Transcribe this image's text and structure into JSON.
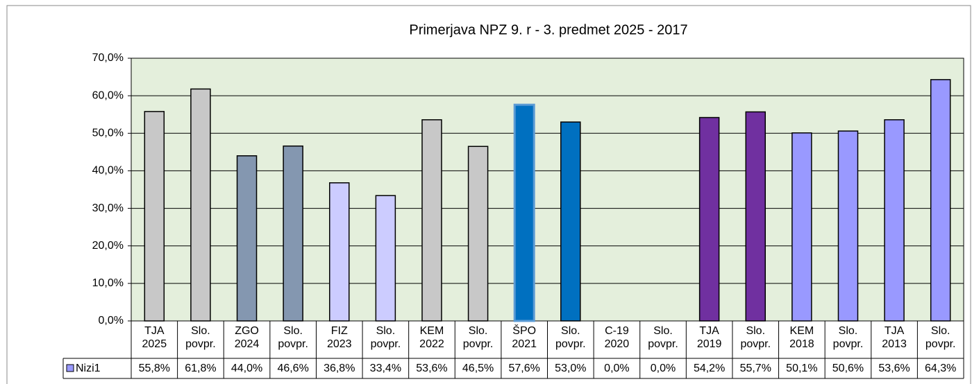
{
  "chart_data": {
    "type": "bar",
    "title": "Primerjava NPZ 9. r - 3. predmet  2025 - 2017",
    "categories": [
      "TJA 2025",
      "Slo. povpr.",
      "ZGO 2024",
      "Slo. povpr.",
      "FIZ 2023",
      "Slo. povpr.",
      "KEM 2022",
      "Slo. povpr.",
      "ŠPO 2021",
      "Slo. povpr.",
      "C-19 2020",
      "Slo. povpr.",
      "TJA 2019",
      "Slo. povpr.",
      "KEM 2018",
      "Slo. povpr.",
      "TJA 2013",
      "Slo. povpr."
    ],
    "series": [
      {
        "name": "Nizi1",
        "color": "#9999ff",
        "values": [
          55.8,
          61.8,
          44.0,
          46.6,
          36.8,
          33.4,
          53.6,
          46.5,
          57.6,
          53.0,
          0.0,
          0.0,
          54.2,
          55.7,
          50.1,
          50.6,
          53.6,
          64.3
        ],
        "value_labels": [
          "55,8%",
          "61,8%",
          "44,0%",
          "46,6%",
          "36,8%",
          "33,4%",
          "53,6%",
          "46,5%",
          "57,6%",
          "53,0%",
          "0,0%",
          "0,0%",
          "54,2%",
          "55,7%",
          "50,1%",
          "50,6%",
          "53,6%",
          "64,3%"
        ],
        "colors": [
          "#c8c8c8",
          "#c8c8c8",
          "#8497b0",
          "#8497b0",
          "#ccccff",
          "#ccccff",
          "#c8c8c8",
          "#c8c8c8",
          "#0070c0",
          "#0070c0",
          "#c8c8c8",
          "#c8c8c8",
          "#7030a0",
          "#7030a0",
          "#9999ff",
          "#9999ff",
          "#9999ff",
          "#9999ff"
        ]
      }
    ],
    "ylim": [
      0,
      70
    ],
    "yticks": [
      {
        "value": 0,
        "label": "0,0%"
      },
      {
        "value": 10,
        "label": "10,0%"
      },
      {
        "value": 20,
        "label": "20,0%"
      },
      {
        "value": 30,
        "label": "30,0%"
      },
      {
        "value": 40,
        "label": "40,0%"
      },
      {
        "value": 50,
        "label": "50,0%"
      },
      {
        "value": 60,
        "label": "60,0%"
      },
      {
        "value": 70,
        "label": "70,0%"
      }
    ],
    "grid": true
  }
}
